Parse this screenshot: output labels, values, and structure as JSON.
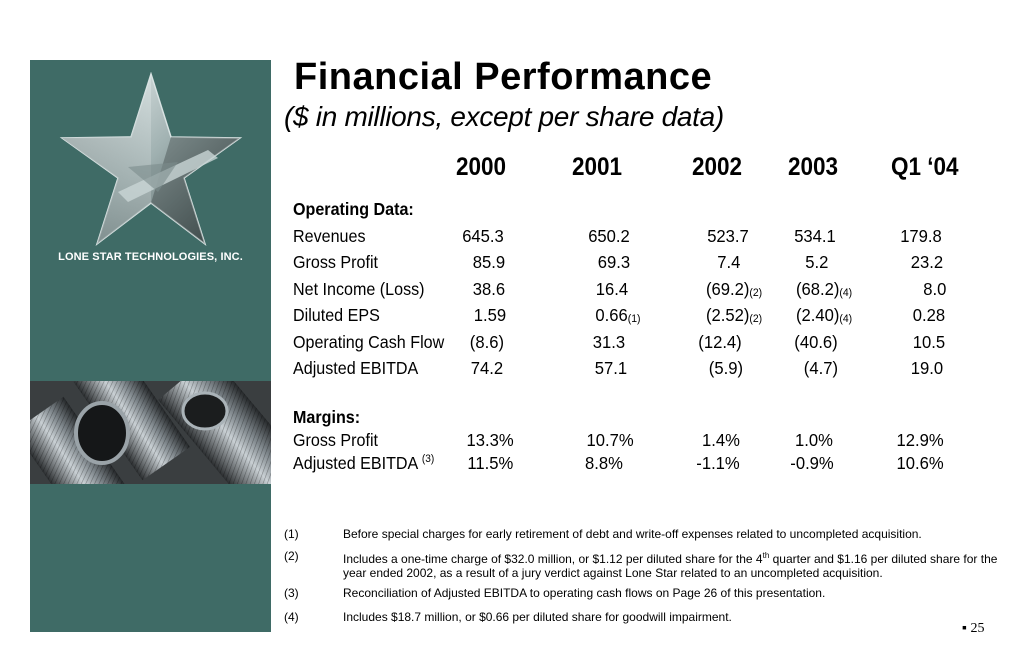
{
  "company_name": "LONE STAR TECHNOLOGIES, INC.",
  "title": "Financial Performance",
  "subtitle": "($ in millions, except per share data)",
  "years": [
    "2000",
    "2001",
    "2002",
    "2003",
    "Q1 ‘04"
  ],
  "sections": {
    "operating": "Operating Data:",
    "margins": "Margins:"
  },
  "rows": [
    {
      "label": "Revenues",
      "values": [
        "645.3",
        "650.2",
        "523.7",
        "534.1",
        "179.8"
      ]
    },
    {
      "label": "Gross Profit",
      "values": [
        "85.9",
        "69.3",
        "7.4",
        "5.2",
        "23.2"
      ]
    },
    {
      "label": "Net Income (Loss)",
      "values": [
        "38.6",
        "16.4",
        "(69.2)",
        "(68.2)",
        "8.0"
      ],
      "notes": [
        "",
        "",
        "(2)",
        "(4)",
        ""
      ]
    },
    {
      "label": "Diluted EPS",
      "values": [
        "1.59",
        "0.66",
        "(2.52)",
        "(2.40)",
        "0.28"
      ],
      "notes": [
        "",
        "(1)",
        "(2)",
        "(4)",
        ""
      ]
    },
    {
      "label": "Operating Cash Flow",
      "values": [
        "(8.6)",
        "31.3",
        "(12.4)",
        "(40.6)",
        "10.5"
      ]
    },
    {
      "label": "Adjusted EBITDA",
      "values": [
        "74.2",
        "57.1",
        "(5.9)",
        "(4.7)",
        "19.0"
      ]
    }
  ],
  "margin_rows": [
    {
      "label": "Gross Profit",
      "values": [
        "13.3%",
        "10.7%",
        "1.4%",
        "1.0%",
        "12.9%"
      ]
    },
    {
      "label": "Adjusted EBITDA",
      "note": "(3)",
      "values": [
        "11.5%",
        "8.8%",
        "-1.1%",
        "-0.9%",
        "10.6%"
      ]
    }
  ],
  "footnotes": [
    {
      "num": "(1)",
      "text": "Before special charges for early retirement of debt and write-off expenses related to uncompleted acquisition."
    },
    {
      "num": "(2)",
      "text_a": "Includes a one-time charge of $32.0 million, or $1.12 per diluted share for the 4",
      "sup": "th",
      "text_b": " quarter and $1.16 per diluted share for the year ended 2002, as a result of a jury verdict against Lone Star related to an uncompleted acquisition."
    },
    {
      "num": "(3)",
      "text": "Reconciliation of Adjusted EBITDA to operating cash flows on Page 26 of this presentation."
    },
    {
      "num": "(4)",
      "text": "Includes $18.7 million, or $0.66 per diluted share for goodwill impairment."
    }
  ],
  "page_number": "25",
  "colors": {
    "panel": "#3f6b66",
    "text": "#000000"
  }
}
